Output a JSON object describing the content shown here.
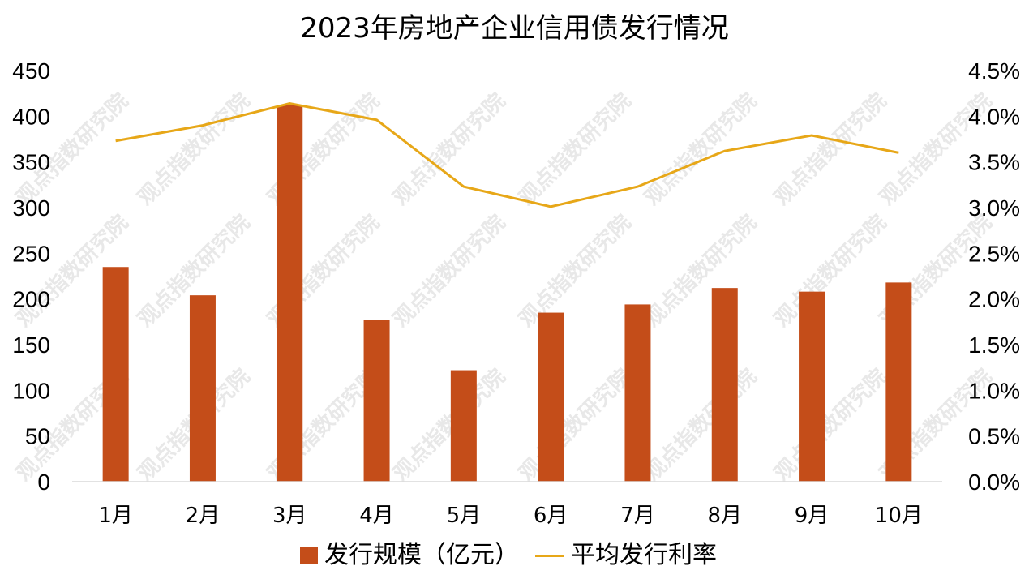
{
  "chart_data": {
    "type": "bar",
    "title": "2023年房地产企业信用债发行情况",
    "categories": [
      "1月",
      "2月",
      "3月",
      "4月",
      "5月",
      "6月",
      "7月",
      "8月",
      "9月",
      "10月"
    ],
    "series": [
      {
        "name": "发行规模（亿元）",
        "type": "bar",
        "axis": "left",
        "color": "#C44D19",
        "values": [
          235,
          204,
          412,
          177,
          122,
          185,
          194,
          212,
          208,
          218
        ]
      },
      {
        "name": "平均发行利率",
        "type": "line",
        "axis": "right",
        "color": "#E7A718",
        "values": [
          3.73,
          3.9,
          4.14,
          3.96,
          3.23,
          3.01,
          3.23,
          3.62,
          3.79,
          3.6
        ]
      }
    ],
    "y_left": {
      "ylim": [
        0,
        450
      ],
      "ticks": [
        "0",
        "50",
        "100",
        "150",
        "200",
        "250",
        "300",
        "350",
        "400",
        "450"
      ]
    },
    "y_right": {
      "ylim": [
        0,
        4.5
      ],
      "unit": "%",
      "ticks": [
        "0.0%",
        "0.5%",
        "1.0%",
        "1.5%",
        "2.0%",
        "2.5%",
        "3.0%",
        "3.5%",
        "4.0%",
        "4.5%"
      ]
    },
    "grid": false,
    "legend": "bottom-center",
    "watermark": "观点指数研究院"
  }
}
